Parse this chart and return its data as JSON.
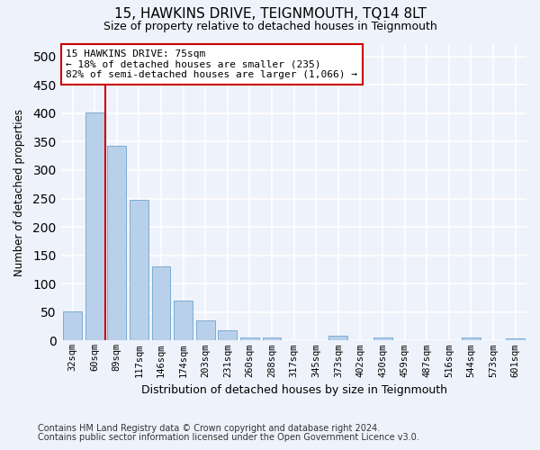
{
  "title": "15, HAWKINS DRIVE, TEIGNMOUTH, TQ14 8LT",
  "subtitle": "Size of property relative to detached houses in Teignmouth",
  "xlabel": "Distribution of detached houses by size in Teignmouth",
  "ylabel": "Number of detached properties",
  "bar_color": "#b8d0ea",
  "bar_edge_color": "#7aadd4",
  "categories": [
    "32sqm",
    "60sqm",
    "89sqm",
    "117sqm",
    "146sqm",
    "174sqm",
    "203sqm",
    "231sqm",
    "260sqm",
    "288sqm",
    "317sqm",
    "345sqm",
    "373sqm",
    "402sqm",
    "430sqm",
    "459sqm",
    "487sqm",
    "516sqm",
    "544sqm",
    "573sqm",
    "601sqm"
  ],
  "values": [
    51,
    401,
    343,
    247,
    130,
    71,
    36,
    18,
    6,
    6,
    0,
    0,
    8,
    0,
    5,
    0,
    0,
    0,
    5,
    0,
    4
  ],
  "ylim": [
    0,
    520
  ],
  "yticks": [
    0,
    50,
    100,
    150,
    200,
    250,
    300,
    350,
    400,
    450,
    500
  ],
  "vline_x": 1.5,
  "vline_color": "#cc0000",
  "annotation_line1": "15 HAWKINS DRIVE: 75sqm",
  "annotation_line2": "← 18% of detached houses are smaller (235)",
  "annotation_line3": "82% of semi-detached houses are larger (1,066) →",
  "annotation_box_color": "#ffffff",
  "annotation_box_edge_color": "#cc0000",
  "footnote1": "Contains HM Land Registry data © Crown copyright and database right 2024.",
  "footnote2": "Contains public sector information licensed under the Open Government Licence v3.0.",
  "background_color": "#eef2fb",
  "grid_color": "#ffffff"
}
